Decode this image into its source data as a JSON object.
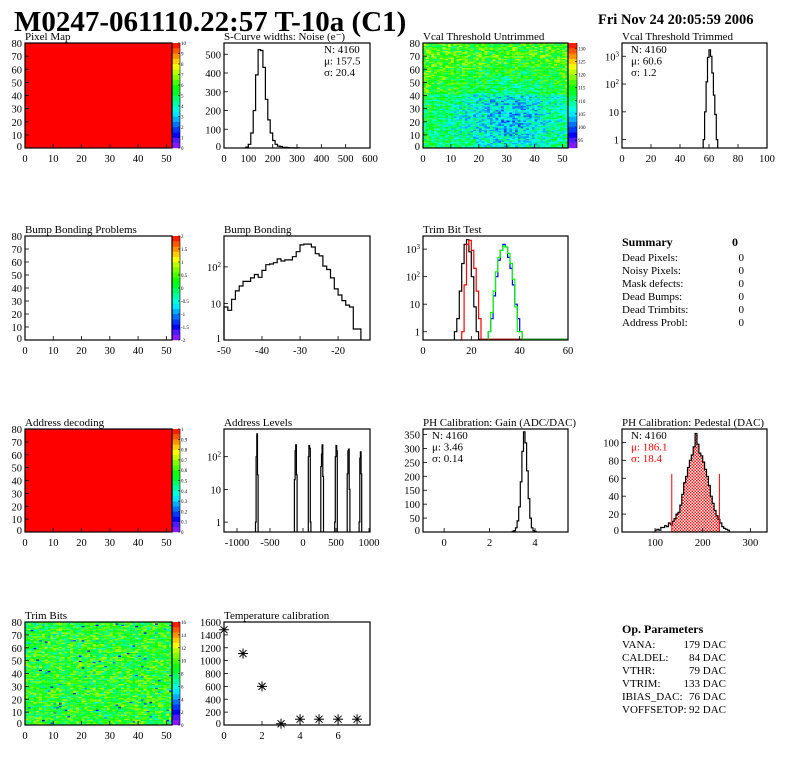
{
  "header": {
    "title": "M0247-061110.22:57 T-10a (C1)",
    "date": "Fri Nov 24 20:05:59 2006"
  },
  "colors": {
    "frame": "#000000",
    "red": "#ff0000",
    "blue": "#0000ff",
    "green": "#00ff00",
    "black": "#000000"
  },
  "panels": [
    {
      "title": "Pixel Map",
      "chart_type": "heatmap",
      "xlim": [
        0,
        52
      ],
      "ylim": [
        0,
        80
      ],
      "x_ticks": [
        0,
        10,
        20,
        30,
        40,
        50
      ],
      "y_ticks": [
        0,
        10,
        20,
        30,
        40,
        50,
        60,
        70,
        80
      ],
      "zlim": [
        0,
        10
      ],
      "z_ticks": [
        0,
        1,
        2,
        3,
        4,
        5,
        6,
        7,
        8,
        9,
        10
      ],
      "uniform_value": 10
    },
    {
      "title": "S-Curve widths: Noise (e⁻)",
      "chart_type": "histogram",
      "xlim": [
        0,
        600
      ],
      "ylim": [
        0,
        560
      ],
      "x_ticks": [
        0,
        100,
        200,
        300,
        400,
        500,
        600
      ],
      "y_ticks": [
        0,
        100,
        200,
        300,
        400,
        500
      ],
      "stats": [
        "N: 4160",
        "μ: 157.5",
        "σ: 20.4"
      ],
      "series": [
        {
          "color": "#000000",
          "start": 90,
          "width": 10,
          "counts": [
            5,
            20,
            80,
            200,
            390,
            525,
            520,
            430,
            260,
            150,
            80,
            40,
            20,
            10,
            8,
            4,
            3,
            2,
            1,
            1,
            0,
            1
          ]
        }
      ]
    },
    {
      "title": "Vcal Threshold Untrimmed",
      "chart_type": "heatmap",
      "xlim": [
        0,
        52
      ],
      "ylim": [
        0,
        80
      ],
      "x_ticks": [
        0,
        10,
        20,
        30,
        40,
        50
      ],
      "y_ticks": [
        0,
        10,
        20,
        30,
        40,
        50,
        60,
        70,
        80
      ],
      "zlim": [
        92,
        132
      ],
      "z_ticks": [
        95,
        100,
        105,
        110,
        115,
        120,
        125,
        130
      ]
    },
    {
      "title": "Vcal Threshold Trimmed",
      "chart_type": "histogram",
      "log_y": true,
      "xlim": [
        0,
        100
      ],
      "ylim": [
        0.5,
        3000
      ],
      "x_ticks": [
        0,
        20,
        40,
        60,
        80,
        100
      ],
      "y_ticks": [
        1,
        10,
        100,
        1000
      ],
      "stats": [
        "N: 4160",
        "μ: 60.6",
        "σ:  1.2"
      ],
      "series": [
        {
          "color": "#000000",
          "start": 56,
          "width": 1,
          "counts": [
            1,
            10,
            120,
            900,
            1700,
            1000,
            250,
            40,
            8,
            1
          ]
        }
      ]
    },
    {
      "title": "Bump Bonding Problems",
      "chart_type": "heatmap",
      "xlim": [
        0,
        52
      ],
      "ylim": [
        0,
        80
      ],
      "x_ticks": [
        0,
        10,
        20,
        30,
        40,
        50
      ],
      "y_ticks": [
        0,
        10,
        20,
        30,
        40,
        50,
        60,
        70,
        80
      ],
      "zlim": [
        -2,
        2
      ],
      "z_ticks": [
        -2,
        -1.5,
        -1,
        -0.5,
        0,
        0.5,
        1,
        1.5,
        2
      ],
      "empty": true
    },
    {
      "title": "Bump Bonding",
      "chart_type": "histogram",
      "log_y": true,
      "xlim": [
        -50,
        -11.6
      ],
      "ylim": [
        1,
        700
      ],
      "x_ticks": [
        -50,
        -40,
        -30,
        -20
      ],
      "y_ticks": [
        1,
        10,
        100
      ],
      "series": [
        {
          "color": "#000000",
          "start": -50,
          "width": 1,
          "counts": [
            8,
            6.5,
            13,
            22,
            30,
            40,
            40,
            50,
            62,
            52,
            80,
            115,
            120,
            130,
            165,
            145,
            155,
            155,
            190,
            260,
            400,
            420,
            420,
            350,
            230,
            200,
            105,
            85,
            50,
            25,
            17,
            12,
            9,
            8,
            2,
            2
          ]
        }
      ]
    },
    {
      "title": "Trim Bit Test",
      "chart_type": "histogram",
      "log_y": true,
      "xlim": [
        0,
        60
      ],
      "ylim": [
        0.5,
        3000
      ],
      "x_ticks": [
        0,
        20,
        40,
        60
      ],
      "y_ticks": [
        1,
        10,
        100,
        1000
      ],
      "series": [
        {
          "color": "#000000",
          "start": 13,
          "width": 1,
          "counts": [
            1,
            3,
            30,
            300,
            1500,
            2200,
            800,
            100,
            8,
            1
          ]
        },
        {
          "color": "#ff0000",
          "start": 16,
          "width": 1,
          "counts": [
            1,
            50,
            1500,
            2100,
            900,
            200,
            30,
            3
          ]
        },
        {
          "color": "#0000ff",
          "start": 27,
          "width": 1,
          "counts": [
            1,
            3,
            20,
            100,
            400,
            900,
            1500,
            1200,
            500,
            200,
            50,
            10,
            3,
            1
          ]
        },
        {
          "color": "#00ff00",
          "start": 27,
          "width": 1,
          "counts": [
            1,
            5,
            30,
            150,
            500,
            900,
            1300,
            1200,
            700,
            300,
            80,
            8,
            1,
            1
          ]
        }
      ]
    },
    {
      "chart_type": "summary",
      "title": "Summary",
      "total": "0",
      "rows": [
        {
          "label": "Dead Pixels:",
          "value": "0"
        },
        {
          "label": "Noisy Pixels:",
          "value": "0"
        },
        {
          "label": "Mask defects:",
          "value": "0"
        },
        {
          "label": "Dead Bumps:",
          "value": "0"
        },
        {
          "label": "Dead Trimbits:",
          "value": "0"
        },
        {
          "label": "Address Probl:",
          "value": "0"
        }
      ]
    },
    {
      "title": "Address decoding",
      "chart_type": "heatmap",
      "xlim": [
        0,
        52
      ],
      "ylim": [
        0,
        80
      ],
      "x_ticks": [
        0,
        10,
        20,
        30,
        40,
        50
      ],
      "y_ticks": [
        0,
        10,
        20,
        30,
        40,
        50,
        60,
        70,
        80
      ],
      "zlim": [
        0,
        1
      ],
      "z_ticks": [
        0,
        0.1,
        0.2,
        0.3,
        0.4,
        0.5,
        0.6,
        0.7,
        0.8,
        0.9,
        1
      ],
      "uniform_value": 1
    },
    {
      "title": "Address Levels",
      "chart_type": "histogram",
      "log_y": true,
      "xlim": [
        -1197,
        1015
      ],
      "ylim": [
        0.5,
        700
      ],
      "x_ticks": [
        -1000,
        -500,
        0,
        500,
        1000
      ],
      "y_ticks": [
        1,
        10,
        100
      ],
      "peaks": [
        {
          "start": -720,
          "width": 10,
          "counts": [
            1,
            100,
            500,
            28
          ]
        },
        {
          "start": -130,
          "width": 10,
          "counts": [
            20,
            150,
            230,
            28
          ]
        },
        {
          "start": 80,
          "width": 10,
          "counts": [
            100,
            220,
            180,
            1
          ]
        },
        {
          "start": 270,
          "width": 10,
          "counts": [
            50,
            120,
            230,
            25
          ]
        },
        {
          "start": 480,
          "width": 10,
          "counts": [
            1,
            100,
            220,
            150
          ]
        },
        {
          "start": 670,
          "width": 10,
          "counts": [
            30,
            150,
            170,
            10
          ]
        },
        {
          "start": 850,
          "width": 10,
          "counts": [
            1,
            90,
            140,
            30
          ]
        }
      ]
    },
    {
      "title": "PH Calibration: Gain (ADC/DAC)",
      "chart_type": "histogram",
      "xlim": [
        -0.93,
        5.45
      ],
      "ylim": [
        0,
        370
      ],
      "x_ticks": [
        0,
        2,
        4
      ],
      "y_ticks": [
        0,
        50,
        100,
        150,
        200,
        250,
        300,
        350
      ],
      "stats": [
        "N: 4160",
        "μ: 3.46",
        "σ: 0.14"
      ],
      "series": [
        {
          "color": "#000000",
          "start": 3.0,
          "width": 0.07,
          "counts": [
            2,
            5,
            15,
            40,
            90,
            180,
            290,
            360,
            320,
            220,
            120,
            50,
            15,
            5,
            2
          ]
        }
      ]
    },
    {
      "title": "PH Calibration: Pedestal (DAC)",
      "chart_type": "histogram",
      "xlim": [
        30.5,
        335
      ],
      "ylim": [
        0,
        115
      ],
      "x_ticks": [
        100,
        200,
        300
      ],
      "y_ticks": [
        0,
        20,
        40,
        60,
        80,
        100
      ],
      "stats": [
        "N: 4160",
        "μ: 186.1",
        "σ: 18.4"
      ],
      "stats_colors": [
        "#000000",
        "#ff0000",
        "#ff0000"
      ],
      "fit_range": [
        136,
        236
      ],
      "range_lines": [
        {
          "x": 135,
          "height": 65
        },
        {
          "x": 235,
          "height": 65
        }
      ],
      "series": [
        {
          "color": "#000000",
          "start": 100,
          "width": 4,
          "counts": [
            2,
            3,
            2,
            5,
            5,
            7,
            6,
            10,
            8,
            12,
            15,
            20,
            22,
            30,
            42,
            55,
            62,
            72,
            80,
            86,
            95,
            110,
            98,
            88,
            85,
            78,
            70,
            62,
            52,
            40,
            32,
            24,
            18,
            14,
            10,
            6,
            4,
            3,
            2
          ]
        }
      ]
    },
    {
      "title": "Trim Bits",
      "chart_type": "heatmap",
      "xlim": [
        0,
        52
      ],
      "ylim": [
        0,
        80
      ],
      "x_ticks": [
        0,
        10,
        20,
        30,
        40,
        50
      ],
      "y_ticks": [
        0,
        10,
        20,
        30,
        40,
        50,
        60,
        70,
        80
      ],
      "zlim": [
        0,
        16
      ],
      "z_ticks": [
        0,
        2,
        4,
        6,
        8,
        10,
        12,
        14,
        16
      ]
    },
    {
      "title": "Temperature calibration",
      "chart_type": "scatter",
      "xlim": [
        0,
        7.68
      ],
      "ylim": [
        0,
        1600
      ],
      "x_ticks": [
        0,
        2,
        4,
        6
      ],
      "y_ticks": [
        0,
        200,
        400,
        600,
        800,
        1000,
        1200,
        1400,
        1600
      ],
      "points": [
        [
          0,
          1480
        ],
        [
          1,
          1110
        ],
        [
          2,
          600
        ],
        [
          3,
          20
        ],
        [
          4,
          90
        ],
        [
          5,
          90
        ],
        [
          6,
          90
        ],
        [
          7,
          90
        ]
      ]
    },
    {
      "chart_type": "blank"
    },
    {
      "chart_type": "params",
      "title": "Op. Parameters",
      "rows": [
        {
          "label": "VANA:",
          "value": "179 DAC"
        },
        {
          "label": "CALDEL:",
          "value": "84 DAC"
        },
        {
          "label": "VTHR:",
          "value": "79 DAC"
        },
        {
          "label": "VTRIM:",
          "value": "133 DAC"
        },
        {
          "label": "IBIAS_DAC:",
          "value": "76 DAC"
        },
        {
          "label": "VOFFSETOP:",
          "value": "92 DAC"
        }
      ]
    }
  ]
}
